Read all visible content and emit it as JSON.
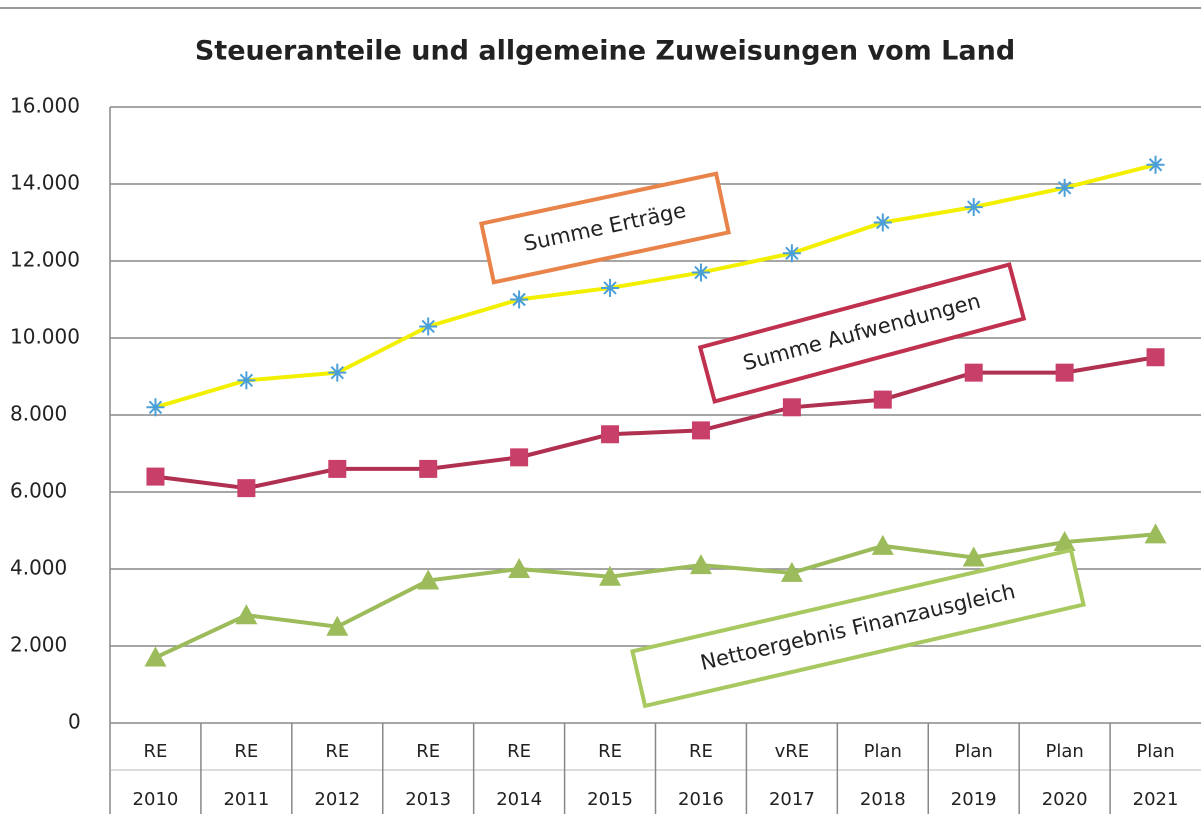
{
  "chart_data": {
    "type": "line",
    "title": "Steueranteile und allgemeine Zuweisungen vom Land",
    "categories": [
      [
        "RE",
        "2010"
      ],
      [
        "RE",
        "2011"
      ],
      [
        "RE",
        "2012"
      ],
      [
        "RE",
        "2013"
      ],
      [
        "RE",
        "2014"
      ],
      [
        "RE",
        "2015"
      ],
      [
        "RE",
        "2016"
      ],
      [
        "vRE",
        "2017"
      ],
      [
        "Plan",
        "2018"
      ],
      [
        "Plan",
        "2019"
      ],
      [
        "Plan",
        "2020"
      ],
      [
        "Plan",
        "2021"
      ]
    ],
    "series": [
      {
        "name": "Summe Erträge",
        "color": "#f2f000",
        "marker": "asterisk",
        "marker_color": "#4a9fd8",
        "box_color": "#e8834a",
        "values": [
          8200,
          8900,
          9100,
          10300,
          11000,
          11300,
          11700,
          12200,
          13000,
          13400,
          13900,
          14500
        ]
      },
      {
        "name": "Summe Aufwendungen",
        "color": "#b03050",
        "marker": "square",
        "marker_color": "#c8406a",
        "box_color": "#c0304f",
        "values": [
          6400,
          6100,
          6600,
          6600,
          6900,
          7500,
          7600,
          8200,
          8400,
          9100,
          9100,
          9500
        ]
      },
      {
        "name": "Nettoergebnis Finanzausgleich",
        "color": "#9cbb5a",
        "marker": "triangle",
        "marker_color": "#9cbb5a",
        "box_color": "#a8c860",
        "values": [
          1700,
          2800,
          2500,
          3700,
          4000,
          3800,
          4100,
          3900,
          4600,
          4300,
          4700,
          4900
        ]
      }
    ],
    "ylim": [
      0,
      16000
    ],
    "yticks": [
      0,
      {
        "value": 2000,
        "label": "2.000"
      },
      {
        "value": 4000,
        "label": "4.000"
      },
      {
        "value": 6000,
        "label": "6.000"
      },
      {
        "value": 8000,
        "label": "8.000"
      },
      {
        "value": 10000,
        "label": "10.000"
      },
      {
        "value": 12000,
        "label": "12.000"
      },
      {
        "value": 14000,
        "label": "14.000"
      },
      {
        "value": 16000,
        "label": "16.000"
      }
    ],
    "grid": true
  }
}
